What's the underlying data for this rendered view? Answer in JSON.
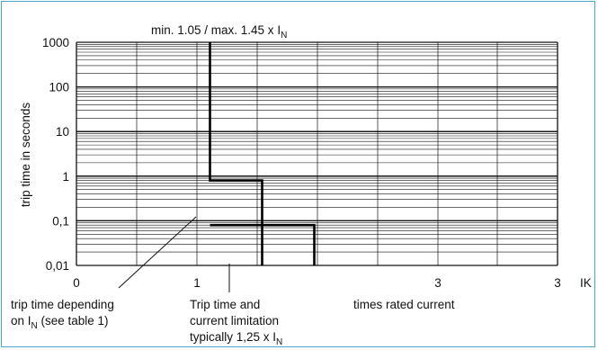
{
  "chart_data": {
    "type": "line",
    "title": "min. 1.05 / max. 1.45 x I",
    "title_subscript": "N",
    "ylabel": "trip time in seconds",
    "xlabel": "times rated current",
    "y_scale": "log",
    "ylim": [
      0.01,
      1000
    ],
    "y_ticks": [
      "1000",
      "100",
      "10",
      "1",
      "0,1",
      "0,01"
    ],
    "x_ticks": [
      "0",
      "1",
      "3",
      "3"
    ],
    "x_unit": "IK",
    "grid": true,
    "series": [
      {
        "x": [
          1.05,
          1.05,
          1.25,
          1.25
        ],
        "y": [
          1000,
          0.8,
          0.8,
          0.01
        ]
      },
      {
        "x": [
          1.05,
          1.45,
          1.45
        ],
        "y": [
          0.08,
          0.08,
          0.01
        ]
      }
    ],
    "annotations": [
      {
        "lines": [
          "trip time depending",
          "on I",
          " (see table 1)"
        ],
        "subscript": "N"
      },
      {
        "lines": [
          "Trip time and",
          "current limitation",
          "typically 1,25 x I"
        ],
        "subscript": "N"
      }
    ]
  },
  "colors": {
    "border": "#4aa8c8",
    "grid": "#111111",
    "curve": "#000000"
  }
}
